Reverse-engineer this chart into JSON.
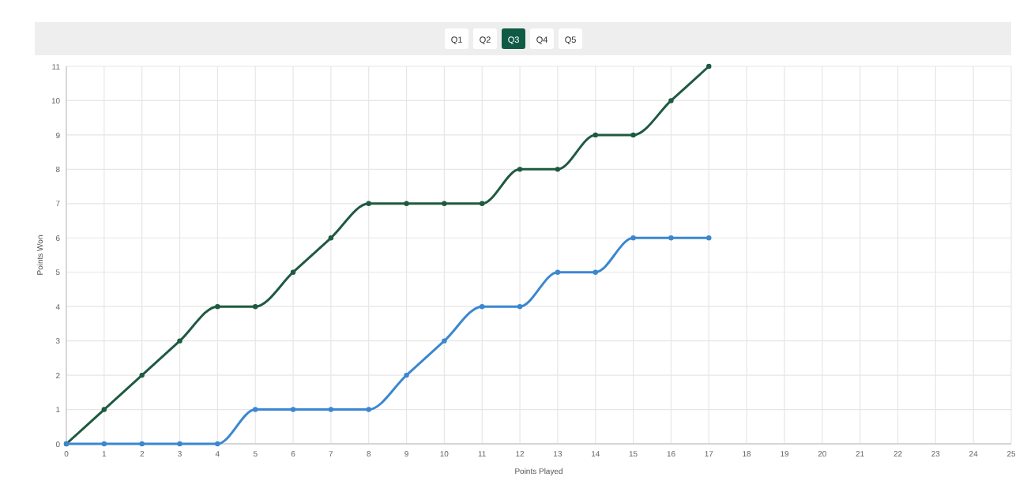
{
  "chart_data": {
    "type": "line",
    "xlabel": "Points Played",
    "ylabel": "Points Won",
    "annotations": [
      "Q1",
      "Q2",
      "Q3",
      "Q4",
      "Q5"
    ],
    "x": [
      0,
      1,
      2,
      3,
      4,
      5,
      6,
      7,
      8,
      9,
      10,
      11,
      12,
      13,
      14,
      15,
      16,
      17
    ],
    "series": [
      {
        "color": "#1e5a40",
        "values": [
          0,
          1,
          2,
          3,
          4,
          4,
          5,
          6,
          7,
          7,
          7,
          7,
          8,
          8,
          9,
          9,
          10,
          11
        ]
      },
      {
        "color": "#3b87d0",
        "values": [
          0,
          0,
          0,
          0,
          0,
          1,
          1,
          1,
          1,
          2,
          3,
          4,
          4,
          5,
          5,
          6,
          6,
          6
        ]
      }
    ],
    "xlim": [
      0,
      25
    ],
    "xticks": [
      0,
      1,
      2,
      3,
      4,
      5,
      6,
      7,
      8,
      9,
      10,
      11,
      12,
      13,
      14,
      15,
      16,
      17,
      18,
      19,
      20,
      21,
      22,
      23,
      24,
      25
    ],
    "ylim": [
      0,
      11
    ],
    "yticks": [
      0,
      1,
      2,
      3,
      4,
      5,
      6,
      7,
      8,
      9,
      10,
      11
    ],
    "grid": true,
    "marker": "circle",
    "line_style": "solid"
  }
}
